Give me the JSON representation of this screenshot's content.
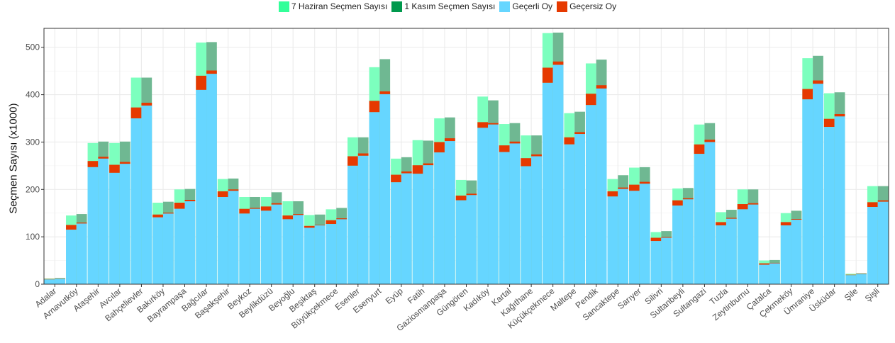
{
  "legend": {
    "june": "7 Haziran Seçmen Sayısı",
    "nov": "1 Kasım Seçmen Sayısı",
    "valid": "Geçerli Oy",
    "invalid": "Geçersiz Oy"
  },
  "colors": {
    "june": "#33ff99",
    "nov": "#00994d",
    "valid": "#66d6ff",
    "invalid": "#e63900",
    "june_plot": "#7cffbe",
    "nov_plot": "#6fb892"
  },
  "chart_data": {
    "type": "bar",
    "ylabel": "Seçmen Sayısı (x1000)",
    "xlabel": "",
    "ylim": [
      0,
      540
    ],
    "yticks": [
      0,
      100,
      200,
      300,
      400,
      500
    ],
    "grid": true,
    "legend_position": "top",
    "categories": [
      "Adalar",
      "Arnavutköy",
      "Ataşehir",
      "Avcılar",
      "Bahçelievler",
      "Bakırköy",
      "Bayrampaşa",
      "Bağcılar",
      "Başakşehir",
      "Beykoz",
      "Beylikdüzü",
      "Beyoğlu",
      "Beşiktaş",
      "Büyükçekmece",
      "Esenler",
      "Esenyurt",
      "Eyüp",
      "Fatih",
      "Gaziosmanpaşa",
      "Güngören",
      "Kadıköy",
      "Kartal",
      "Kağıthane",
      "Küçükçekmece",
      "Maltepe",
      "Pendik",
      "Sancaktepe",
      "Sarıyer",
      "Silivri",
      "Sultanbeyli",
      "Sultangazi",
      "Tuzla",
      "Zeytinburnu",
      "Çatalca",
      "Çekmeköy",
      "Ümraniye",
      "Üsküdar",
      "Şile",
      "Şişli"
    ],
    "series": [
      {
        "name": "7 Haziran Seçmen Sayısı",
        "election": "june",
        "values": [
          12,
          145,
          298,
          298,
          436,
          172,
          200,
          510,
          222,
          184,
          184,
          175,
          146,
          158,
          310,
          458,
          265,
          304,
          350,
          220,
          396,
          338,
          314,
          530,
          361,
          466,
          222,
          246,
          110,
          202,
          337,
          152,
          200,
          50,
          150,
          477,
          403,
          22,
          207
        ]
      },
      {
        "name": "1 Kasım Seçmen Sayısı",
        "election": "nov",
        "values": [
          13,
          148,
          301,
          301,
          436,
          174,
          201,
          511,
          223,
          184,
          194,
          175,
          147,
          161,
          310,
          475,
          268,
          303,
          352,
          219,
          388,
          340,
          314,
          531,
          364,
          474,
          230,
          247,
          112,
          203,
          340,
          157,
          200,
          51,
          155,
          482,
          405,
          23,
          207
        ]
      },
      {
        "name": "Geçerli Oy",
        "election": "june",
        "values": [
          10,
          115,
          247,
          235,
          350,
          141,
          159,
          410,
          184,
          149,
          155,
          137,
          119,
          127,
          250,
          363,
          215,
          233,
          278,
          177,
          330,
          279,
          249,
          425,
          295,
          378,
          185,
          197,
          91,
          166,
          275,
          124,
          158,
          41,
          124,
          390,
          332,
          19,
          163
        ]
      },
      {
        "name": "Geçersiz Oy",
        "election": "june",
        "values": [
          1,
          10,
          13,
          17,
          23,
          6,
          13,
          30,
          12,
          10,
          9,
          8,
          4,
          8,
          20,
          24,
          16,
          18,
          22,
          10,
          12,
          14,
          17,
          32,
          15,
          24,
          11,
          13,
          7,
          11,
          20,
          7,
          11,
          3,
          7,
          22,
          17,
          1,
          10
        ]
      },
      {
        "name": "Geçerli Oy",
        "election": "nov",
        "values": [
          11,
          128,
          265,
          254,
          377,
          149,
          175,
          444,
          197,
          159,
          168,
          146,
          124,
          137,
          271,
          401,
          234,
          251,
          302,
          188,
          337,
          297,
          270,
          463,
          317,
          413,
          201,
          212,
          98,
          179,
          300,
          138,
          168,
          44,
          136,
          423,
          354,
          21,
          174
        ]
      },
      {
        "name": "Geçersiz Oy",
        "election": "nov",
        "values": [
          0.5,
          2,
          4,
          4,
          6,
          2,
          3,
          7,
          3,
          2,
          3,
          2,
          1,
          2,
          5,
          6,
          4,
          4,
          6,
          3,
          3,
          4,
          4,
          7,
          4,
          7,
          3,
          4,
          1.5,
          2.5,
          5,
          2,
          3,
          1,
          1.5,
          7,
          5,
          0.5,
          3
        ]
      }
    ]
  }
}
